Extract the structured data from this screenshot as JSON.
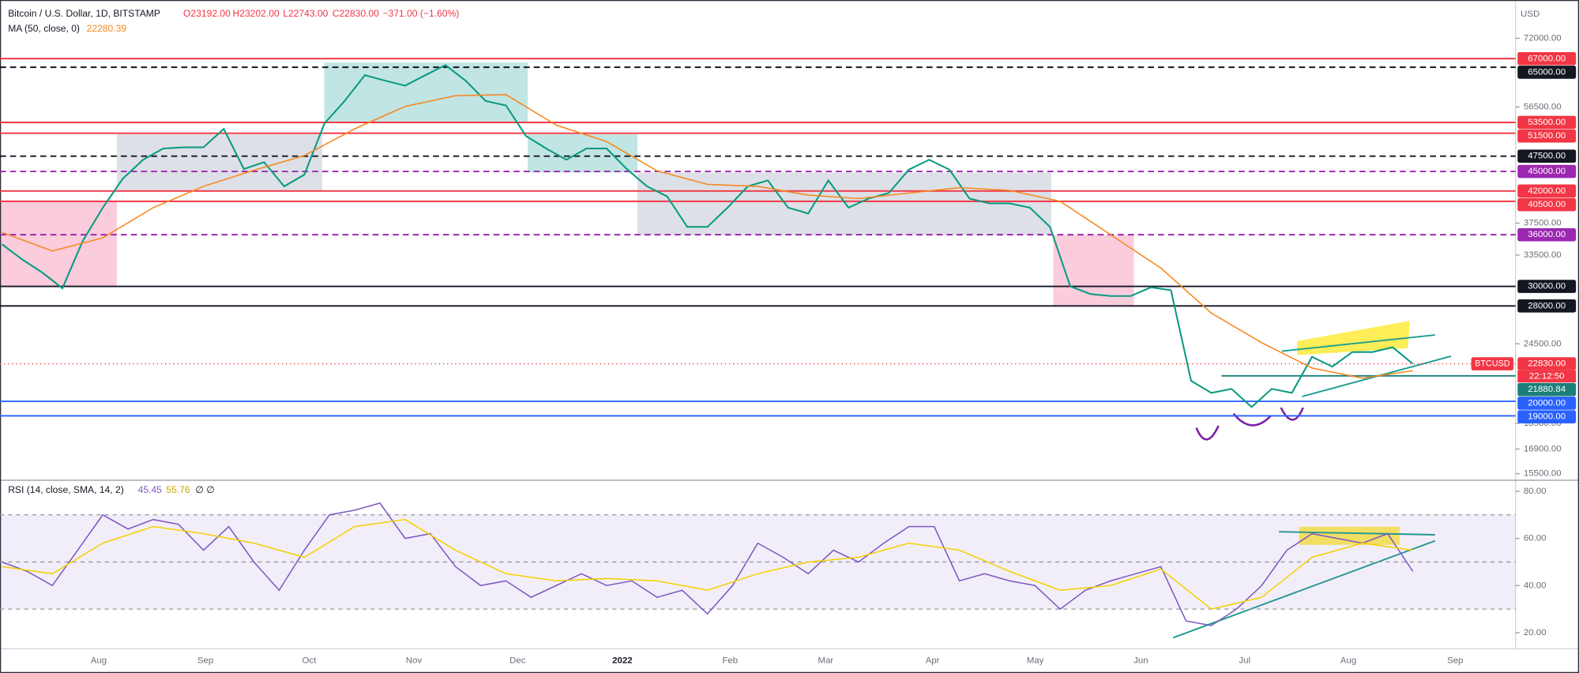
{
  "header": {
    "symbol": "Bitcoin / U.S. Dollar, 1D, BITSTAMP",
    "ohlc": [
      "O23192.00",
      "H23202.00",
      "L22743.00",
      "C22830.00",
      "−371.00 (−1.60%)"
    ],
    "currency": "USD",
    "time_labels": [
      "Aug",
      "Sep",
      "Oct",
      "Nov",
      "Dec",
      "2022",
      "Feb",
      "Mar",
      "Apr",
      "May",
      "Jun",
      "Jul",
      "Aug",
      "Sep"
    ]
  },
  "chart_data": [
    {
      "type": "line",
      "log_scale": true,
      "ylim": [
        15300,
        82400
      ],
      "yticks": [
        {
          "value": 72000,
          "label": "72000.00"
        },
        {
          "value": 56500,
          "label": "56500.00"
        },
        {
          "value": 37500,
          "label": "37500.00"
        },
        {
          "value": 33500,
          "label": "33500.00"
        },
        {
          "value": 24500,
          "label": "24500.00"
        },
        {
          "value": 18500,
          "label": "18500.00"
        },
        {
          "value": 16900,
          "label": "16900.00"
        },
        {
          "value": 15500,
          "label": "15500.00"
        }
      ],
      "series": [
        {
          "name": "BTCUSD",
          "color": "#089981",
          "values": [
            34800,
            33000,
            31500,
            29800,
            35200,
            39600,
            43900,
            46900,
            48800,
            49000,
            49000,
            52300,
            45400,
            46500,
            42700,
            44500,
            53300,
            57700,
            63200,
            62000,
            60900,
            63200,
            65500,
            62000,
            57700,
            56800,
            51000,
            48800,
            46900,
            48800,
            48800,
            45400,
            42700,
            41200,
            37000,
            37000,
            39600,
            42700,
            43600,
            39600,
            38800,
            43600,
            39600,
            40900,
            41700,
            45300,
            46900,
            45300,
            40900,
            40200,
            40200,
            39600,
            37000,
            30000,
            29200,
            29000,
            29000,
            29900,
            29600,
            21500,
            20600,
            20900,
            19600,
            20900,
            20600,
            23400,
            22600,
            23800,
            23800,
            24200,
            22830
          ]
        },
        {
          "name": "MA (50, close, 0)",
          "color": "#f7861b",
          "last_value": 22280.39,
          "values": [
            36300,
            34000,
            35600,
            39600,
            42700,
            45200,
            47600,
            52300,
            56600,
            58800,
            59000,
            53000,
            50000,
            45100,
            43000,
            42700,
            41400,
            40900,
            41700,
            42500,
            42100,
            40500,
            36000,
            32000,
            27300,
            24600,
            22500,
            21700,
            22280
          ]
        }
      ],
      "levels": [
        {
          "value": 67000,
          "label": "67000.00",
          "color": "#f23645",
          "style": "solid"
        },
        {
          "value": 65000,
          "label": "65000.00",
          "color": "#131722",
          "style": "dashed"
        },
        {
          "value": 53500,
          "label": "53500.00",
          "color": "#f23645",
          "style": "solid"
        },
        {
          "value": 51500,
          "label": "51500.00",
          "color": "#f23645",
          "style": "solid"
        },
        {
          "value": 47500,
          "label": "47500.00",
          "color": "#131722",
          "style": "dashed"
        },
        {
          "value": 45000,
          "label": "45000.00",
          "color": "#9c27b0",
          "style": "dashed"
        },
        {
          "value": 42000,
          "label": "42000.00",
          "color": "#f23645",
          "style": "solid"
        },
        {
          "value": 40500,
          "label": "40500.00",
          "color": "#f23645",
          "style": "solid"
        },
        {
          "value": 36000,
          "label": "36000.00",
          "color": "#9c27b0",
          "style": "dashed"
        },
        {
          "value": 30000,
          "label": "30000.00",
          "color": "#131722",
          "style": "solid"
        },
        {
          "value": 28000,
          "label": "28000.00",
          "color": "#131722",
          "style": "solid"
        },
        {
          "value": 22830,
          "label": "22830.00",
          "color": "#f23645",
          "style": "dotted",
          "countdown": "22:12:50"
        },
        {
          "value": 21880.84,
          "label": "21880.84",
          "color": "#1b7f79",
          "style": "ray"
        },
        {
          "value": 20000,
          "label": "20000.00",
          "color": "#2962ff",
          "style": "solid"
        },
        {
          "value": 19000,
          "label": "19000.00",
          "color": "#2962ff",
          "style": "solid"
        }
      ]
    },
    {
      "type": "line",
      "ylim": [
        13.6,
        83.8
      ],
      "yticks": [
        {
          "value": 80,
          "label": "80.00"
        },
        {
          "value": 60,
          "label": "60.00"
        },
        {
          "value": 40,
          "label": "40.00"
        },
        {
          "value": 20,
          "label": "20.00"
        }
      ],
      "bands": [
        70,
        50,
        30
      ],
      "series": [
        {
          "name": "RSI (14, close, SMA, 14, 2)",
          "color": "#7e57c2",
          "last_value": 45.45,
          "values": [
            50,
            46,
            40,
            55,
            70,
            64,
            68,
            66,
            55,
            65,
            50,
            38,
            55,
            70,
            72,
            75,
            60,
            62,
            48,
            40,
            42,
            35,
            40,
            45,
            40,
            42,
            35,
            38,
            28,
            40,
            58,
            52,
            45,
            55,
            50,
            58,
            65,
            65,
            42,
            45,
            42,
            40,
            30,
            38,
            42,
            45,
            48,
            25,
            23,
            30,
            40,
            55,
            62,
            60,
            58,
            62,
            46
          ]
        },
        {
          "color": "#f5d000",
          "last_value": 55.76,
          "values": [
            48,
            45,
            58,
            65,
            62,
            58,
            52,
            65,
            68,
            55,
            45,
            42,
            43,
            42,
            38,
            45,
            50,
            52,
            58,
            55,
            46,
            38,
            40,
            47,
            30,
            35,
            52,
            58,
            55
          ]
        }
      ],
      "extra": "∅ ∅"
    }
  ]
}
